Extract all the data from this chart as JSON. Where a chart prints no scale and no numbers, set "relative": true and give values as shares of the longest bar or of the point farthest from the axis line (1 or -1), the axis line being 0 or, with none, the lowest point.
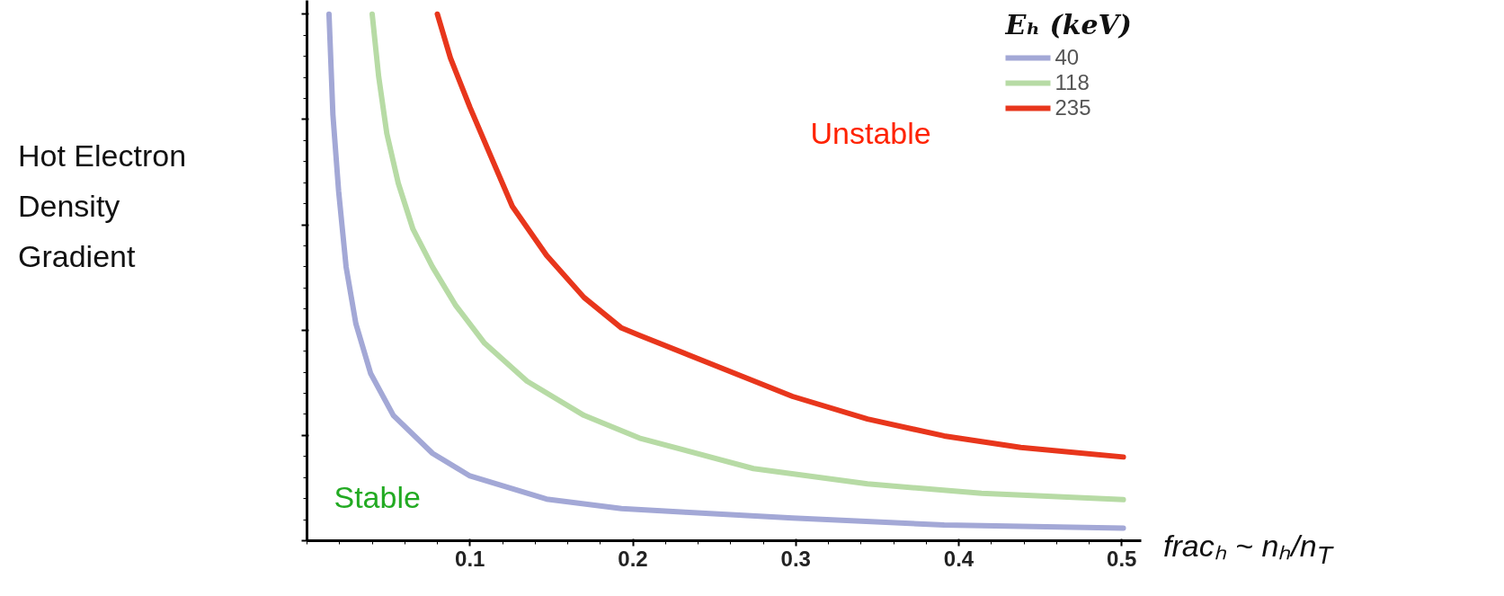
{
  "chart_data": {
    "type": "line",
    "relative": true,
    "xlabel": "fracₕ ~ nₕ/n$_{T}$",
    "ylabel": "Hot Electron Density Gradient",
    "legend_title": "Eₕ (keV)",
    "legend": "top right",
    "grid": false,
    "xlim": [
      0,
      0.512
    ],
    "xticks": [
      0.1,
      0.2,
      0.3,
      0.4,
      0.5
    ],
    "tick_labels": "x",
    "annotations": [
      "Unstable",
      "Stable"
    ],
    "series": [
      {
        "name": "40",
        "color": "#a3a8d6",
        "x": [
          0.0135,
          0.0159,
          0.0194,
          0.024,
          0.03,
          0.039,
          0.053,
          0.077,
          0.1,
          0.147,
          0.193,
          0.232,
          0.298,
          0.391,
          0.501
        ],
        "values": [
          1.0,
          0.809,
          0.664,
          0.52,
          0.412,
          0.318,
          0.238,
          0.166,
          0.123,
          0.079,
          0.061,
          0.054,
          0.043,
          0.03,
          0.024
        ]
      },
      {
        "name": "118",
        "color": "#b7dba5",
        "x": [
          0.04,
          0.044,
          0.049,
          0.056,
          0.065,
          0.077,
          0.091,
          0.109,
          0.135,
          0.17,
          0.204,
          0.274,
          0.344,
          0.414,
          0.501
        ],
        "values": [
          1.0,
          0.881,
          0.773,
          0.679,
          0.592,
          0.52,
          0.448,
          0.375,
          0.303,
          0.238,
          0.195,
          0.137,
          0.108,
          0.09,
          0.078
        ]
      },
      {
        "name": "235",
        "color": "#e8361c",
        "x": [
          0.08,
          0.088,
          0.1,
          0.112,
          0.126,
          0.147,
          0.17,
          0.193,
          0.204,
          0.251,
          0.298,
          0.344,
          0.391,
          0.438,
          0.501
        ],
        "values": [
          1.0,
          0.917,
          0.823,
          0.736,
          0.635,
          0.542,
          0.462,
          0.404,
          0.39,
          0.332,
          0.274,
          0.231,
          0.199,
          0.177,
          0.159
        ]
      }
    ]
  }
}
